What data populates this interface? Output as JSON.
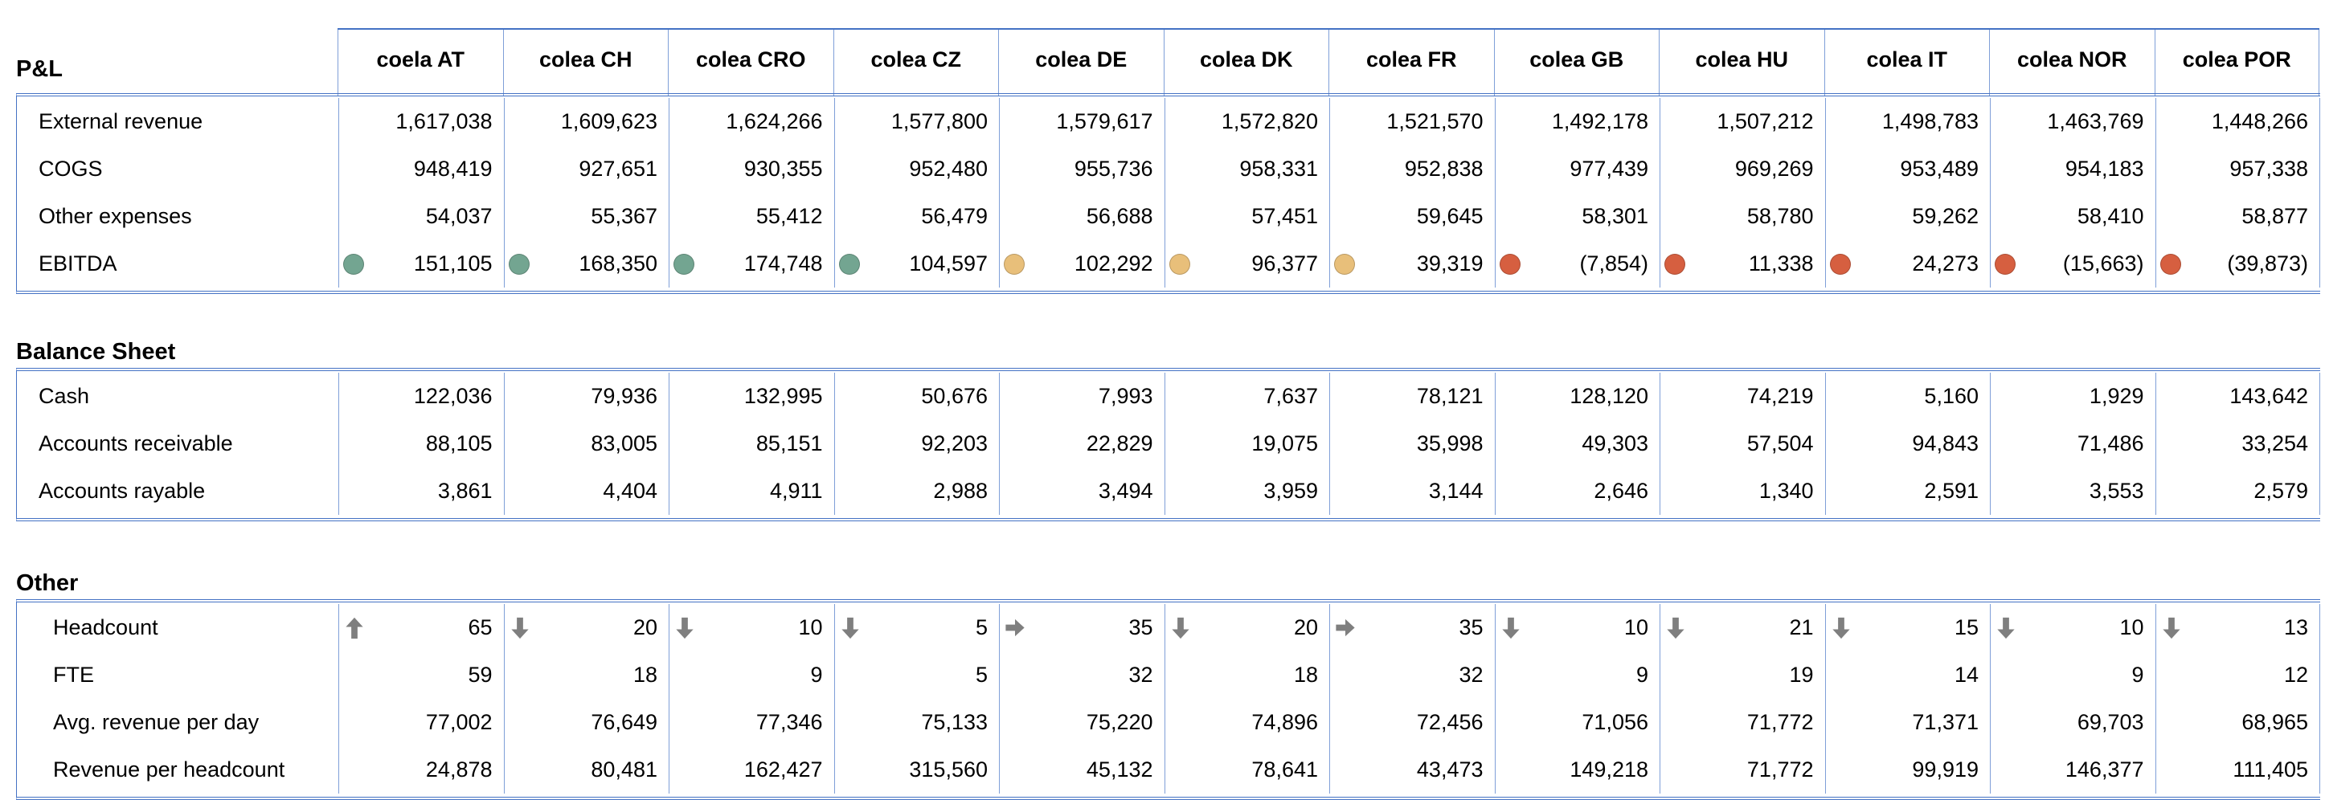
{
  "columns": [
    "coela AT",
    "colea CH",
    "colea CRO",
    "colea CZ",
    "colea DE",
    "colea DK",
    "colea FR",
    "colea GB",
    "colea HU",
    "colea IT",
    "colea NOR",
    "colea POR"
  ],
  "status_colors": {
    "green": "#73A591",
    "amber": "#E8BF7A",
    "red": "#D65F40"
  },
  "arrow_color": "#7F7F7F",
  "pnl": {
    "title": "P&L",
    "rows": [
      {
        "label": "External revenue",
        "values": [
          "1,617,038",
          "1,609,623",
          "1,624,266",
          "1,577,800",
          "1,579,617",
          "1,572,820",
          "1,521,570",
          "1,492,178",
          "1,507,212",
          "1,498,783",
          "1,463,769",
          "1,448,266"
        ]
      },
      {
        "label": "COGS",
        "values": [
          "948,419",
          "927,651",
          "930,355",
          "952,480",
          "955,736",
          "958,331",
          "952,838",
          "977,439",
          "969,269",
          "953,489",
          "954,183",
          "957,338"
        ]
      },
      {
        "label": "Other expenses",
        "values": [
          "54,037",
          "55,367",
          "55,412",
          "56,479",
          "56,688",
          "57,451",
          "59,645",
          "58,301",
          "58,780",
          "59,262",
          "58,410",
          "58,877"
        ]
      },
      {
        "label": "EBITDA",
        "values": [
          "151,105",
          "168,350",
          "174,748",
          "104,597",
          "102,292",
          "96,377",
          "39,319",
          "(7,854)",
          "11,338",
          "24,273",
          "(15,663)",
          "(39,873)"
        ],
        "status": [
          "green",
          "green",
          "green",
          "green",
          "amber",
          "amber",
          "amber",
          "red",
          "red",
          "red",
          "red",
          "red"
        ]
      }
    ]
  },
  "balance": {
    "title": "Balance Sheet",
    "rows": [
      {
        "label": "Cash",
        "values": [
          "122,036",
          "79,936",
          "132,995",
          "50,676",
          "7,993",
          "7,637",
          "78,121",
          "128,120",
          "74,219",
          "5,160",
          "1,929",
          "143,642"
        ]
      },
      {
        "label": "Accounts receivable",
        "values": [
          "88,105",
          "83,005",
          "85,151",
          "92,203",
          "22,829",
          "19,075",
          "35,998",
          "49,303",
          "57,504",
          "94,843",
          "71,486",
          "33,254"
        ]
      },
      {
        "label": "Accounts rayable",
        "values": [
          "3,861",
          "4,404",
          "4,911",
          "2,988",
          "3,494",
          "3,959",
          "3,144",
          "2,646",
          "1,340",
          "2,591",
          "3,553",
          "2,579"
        ]
      }
    ]
  },
  "other": {
    "title": "Other",
    "rows": [
      {
        "label": "Headcount",
        "values": [
          "65",
          "20",
          "10",
          "5",
          "35",
          "20",
          "35",
          "10",
          "21",
          "15",
          "10",
          "13"
        ],
        "trend": [
          "up",
          "down",
          "down",
          "down",
          "right",
          "down",
          "right",
          "down",
          "down",
          "down",
          "down",
          "down"
        ]
      },
      {
        "label": "FTE",
        "values": [
          "59",
          "18",
          "9",
          "5",
          "32",
          "18",
          "32",
          "9",
          "19",
          "14",
          "9",
          "12"
        ]
      },
      {
        "label": "Avg. revenue per day",
        "values": [
          "77,002",
          "76,649",
          "77,346",
          "75,133",
          "75,220",
          "74,896",
          "72,456",
          "71,056",
          "71,772",
          "71,371",
          "69,703",
          "68,965"
        ]
      },
      {
        "label": "Revenue per headcount",
        "values": [
          "24,878",
          "80,481",
          "162,427",
          "315,560",
          "45,132",
          "78,641",
          "43,473",
          "149,218",
          "71,772",
          "99,919",
          "146,377",
          "111,405"
        ]
      }
    ]
  }
}
